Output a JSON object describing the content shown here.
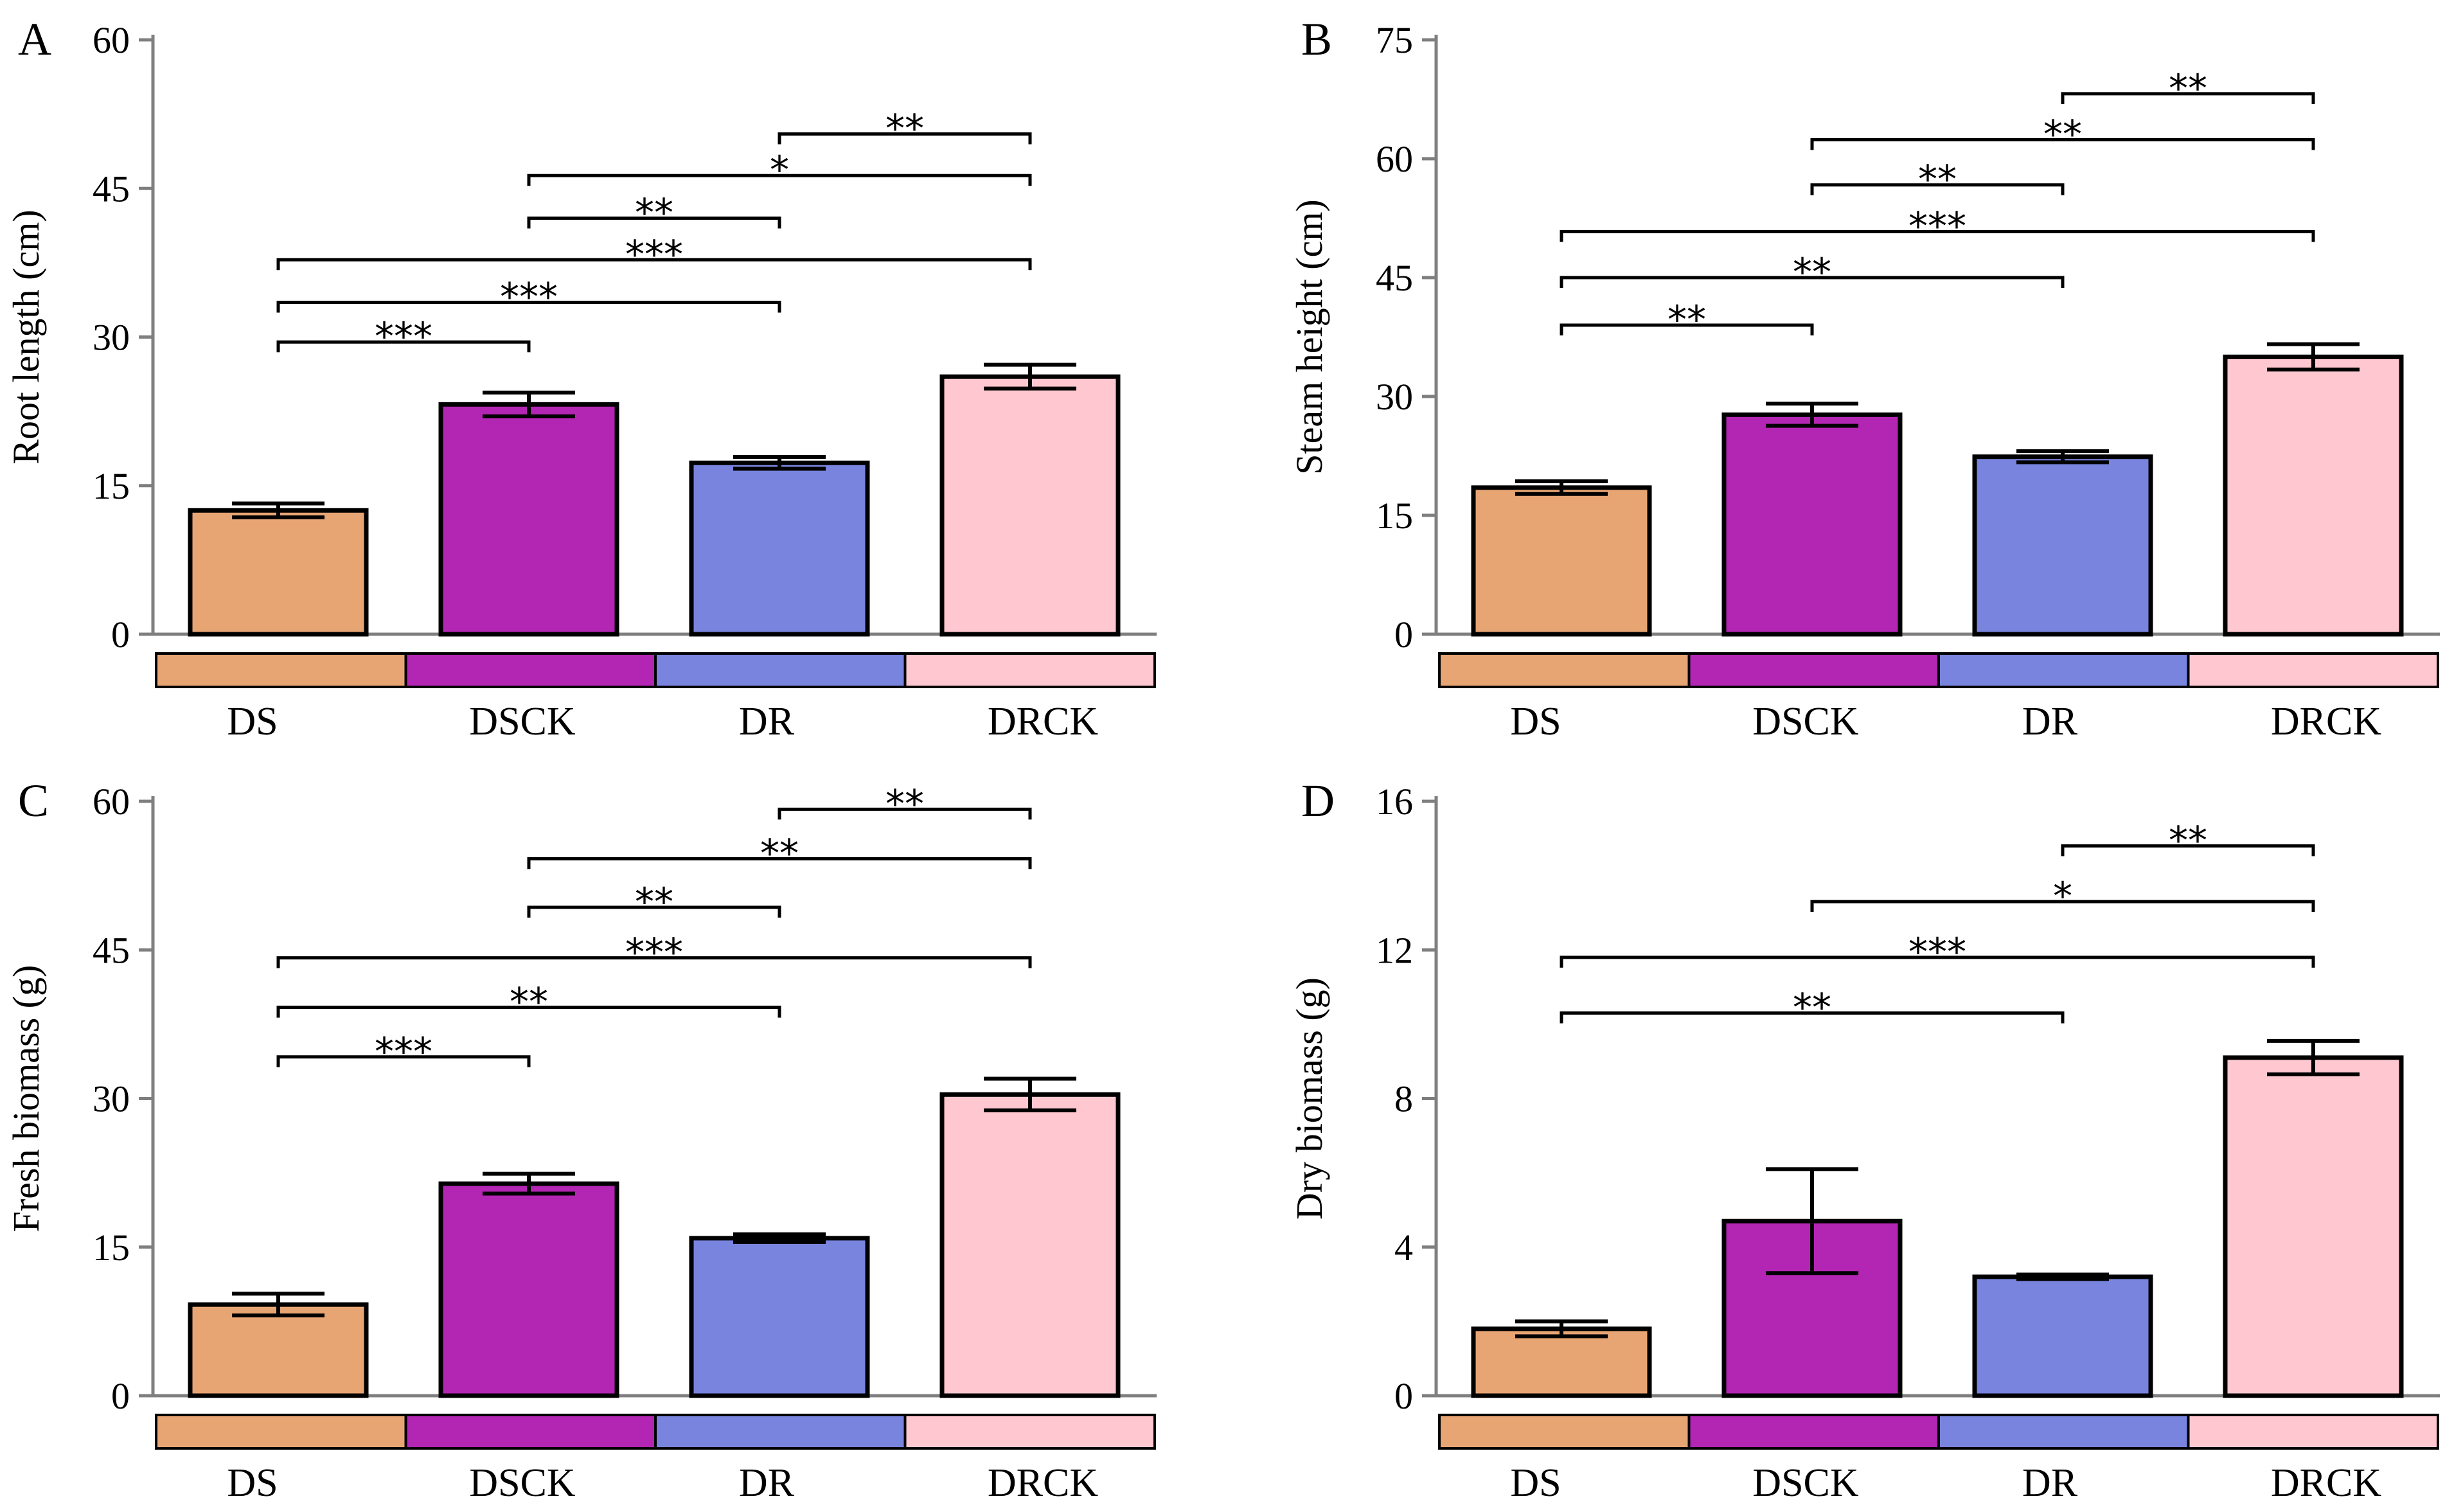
{
  "colors": {
    "DS": "#E8A574",
    "DSCK": "#B325B3",
    "DR": "#7884DE",
    "DRCK": "#FFC8D0",
    "axis": "#7f7f7f",
    "frame": "#000000"
  },
  "chart_data": [
    {
      "type": "bar",
      "panel": "A",
      "ylabel": "Root length (cm)",
      "categories": [
        "DS",
        "DSCK",
        "DR",
        "DRCK"
      ],
      "values": [
        12.5,
        23.2,
        17.3,
        26.0
      ],
      "errors": [
        0.7,
        1.2,
        0.6,
        1.2
      ],
      "ylim": [
        0,
        60
      ],
      "yticks": [
        0,
        15,
        30,
        45,
        60
      ],
      "significance": [
        {
          "from": 0,
          "to": 1,
          "y": 29.5,
          "label": "***"
        },
        {
          "from": 0,
          "to": 2,
          "y": 33.5,
          "label": "***"
        },
        {
          "from": 0,
          "to": 3,
          "y": 37.8,
          "label": "***"
        },
        {
          "from": 1,
          "to": 2,
          "y": 42.0,
          "label": "**"
        },
        {
          "from": 1,
          "to": 3,
          "y": 46.3,
          "label": "*"
        },
        {
          "from": 2,
          "to": 3,
          "y": 50.5,
          "label": "**"
        }
      ]
    },
    {
      "type": "bar",
      "panel": "B",
      "ylabel": "Steam height (cm)",
      "categories": [
        "DS",
        "DSCK",
        "DR",
        "DRCK"
      ],
      "values": [
        18.5,
        27.7,
        22.4,
        35.0
      ],
      "errors": [
        0.8,
        1.4,
        0.7,
        1.6
      ],
      "ylim": [
        0,
        75
      ],
      "yticks": [
        0,
        15,
        30,
        45,
        60,
        75
      ],
      "significance": [
        {
          "from": 0,
          "to": 1,
          "y": 39.0,
          "label": "**"
        },
        {
          "from": 0,
          "to": 2,
          "y": 45.0,
          "label": "**"
        },
        {
          "from": 0,
          "to": 3,
          "y": 50.8,
          "label": "***"
        },
        {
          "from": 1,
          "to": 2,
          "y": 56.7,
          "label": "**"
        },
        {
          "from": 1,
          "to": 3,
          "y": 62.4,
          "label": "**"
        },
        {
          "from": 2,
          "to": 3,
          "y": 68.2,
          "label": "**"
        }
      ]
    },
    {
      "type": "bar",
      "panel": "C",
      "ylabel": "Fresh biomass (g)",
      "categories": [
        "DS",
        "DSCK",
        "DR",
        "DRCK"
      ],
      "values": [
        9.2,
        21.4,
        15.9,
        30.4
      ],
      "errors": [
        1.1,
        1.0,
        0.4,
        1.6
      ],
      "ylim": [
        0,
        60
      ],
      "yticks": [
        0,
        15,
        30,
        45,
        60
      ],
      "significance": [
        {
          "from": 0,
          "to": 1,
          "y": 34.2,
          "label": "***"
        },
        {
          "from": 0,
          "to": 2,
          "y": 39.2,
          "label": "**"
        },
        {
          "from": 0,
          "to": 3,
          "y": 44.2,
          "label": "***"
        },
        {
          "from": 1,
          "to": 2,
          "y": 49.3,
          "label": "**"
        },
        {
          "from": 1,
          "to": 3,
          "y": 54.2,
          "label": "**"
        },
        {
          "from": 2,
          "to": 3,
          "y": 59.2,
          "label": "**"
        }
      ]
    },
    {
      "type": "bar",
      "panel": "D",
      "ylabel": "Dry biomass (g)",
      "categories": [
        "DS",
        "DSCK",
        "DR",
        "DRCK"
      ],
      "values": [
        1.8,
        4.7,
        3.2,
        9.1
      ],
      "errors": [
        0.2,
        1.4,
        0.06,
        0.45
      ],
      "ylim": [
        0,
        16
      ],
      "yticks": [
        0,
        4,
        8,
        12,
        16
      ],
      "significance": [
        {
          "from": 0,
          "to": 2,
          "y": 10.3,
          "label": "**"
        },
        {
          "from": 0,
          "to": 3,
          "y": 11.8,
          "label": "***"
        },
        {
          "from": 1,
          "to": 3,
          "y": 13.3,
          "label": "*"
        },
        {
          "from": 2,
          "to": 3,
          "y": 14.8,
          "label": "**"
        }
      ]
    }
  ]
}
